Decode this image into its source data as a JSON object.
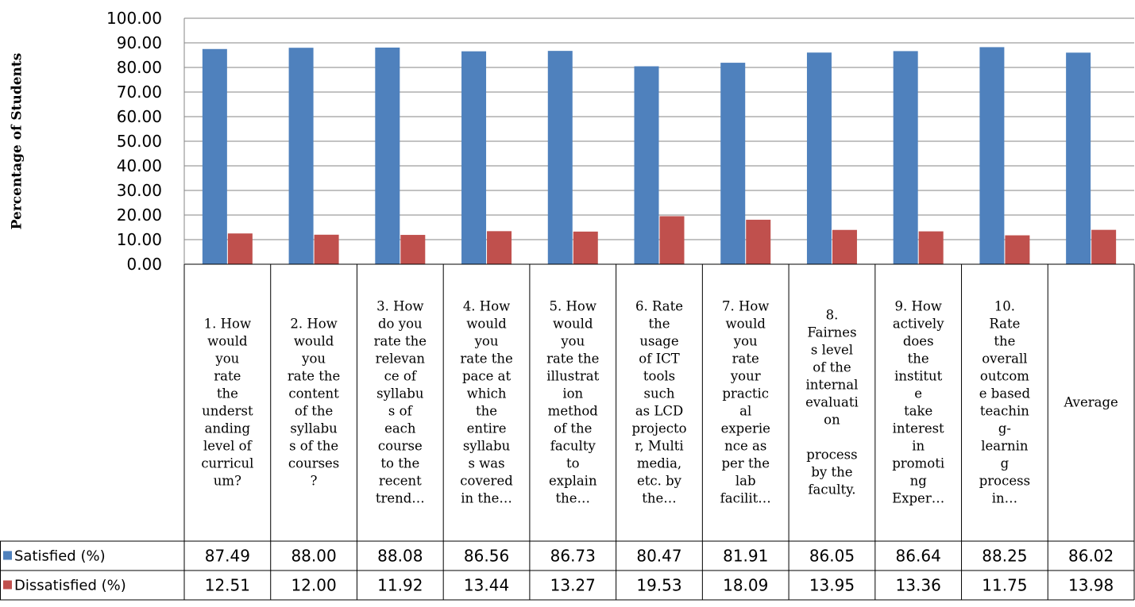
{
  "chart_data": {
    "type": "bar",
    "ylabel": "Percentage of Students",
    "ylim": [
      0,
      100
    ],
    "yticks": [
      "0.00",
      "10.00",
      "20.00",
      "30.00",
      "40.00",
      "50.00",
      "60.00",
      "70.00",
      "80.00",
      "90.00",
      "100.00"
    ],
    "grid": true,
    "legend": "data-table-left",
    "categories": [
      [
        "1. How",
        "would",
        "you",
        "rate",
        "the",
        "underst",
        "anding",
        "level of",
        "curricul",
        "um?"
      ],
      [
        "2. How",
        "would",
        "you",
        "rate the",
        "content",
        "of the",
        "syllabu",
        "s of the",
        "courses",
        "?"
      ],
      [
        "3. How",
        "do you",
        "rate the",
        "relevan",
        "ce of",
        "syllabu",
        "s of",
        "each",
        "course",
        "to the",
        "recent",
        "trend…"
      ],
      [
        "4. How",
        "would",
        "you",
        "rate the",
        "pace at",
        "which",
        "the",
        "entire",
        "syllabu",
        "s was",
        "covered",
        "in the…"
      ],
      [
        "5. How",
        "would",
        "you",
        "rate the",
        "illustrat",
        "ion",
        "method",
        "of the",
        "faculty",
        "to",
        "explain",
        "the…"
      ],
      [
        "6. Rate",
        "the",
        "usage",
        "of ICT",
        "tools",
        "such",
        "as LCD",
        "projecto",
        "r, Multi",
        "media,",
        "etc. by",
        "the…"
      ],
      [
        "7. How",
        "would",
        "you",
        "rate",
        "your",
        "practic",
        "al",
        "experie",
        "nce as",
        "per the",
        "lab",
        "facilit…"
      ],
      [
        "8.",
        "Fairnes",
        "s level",
        "of the",
        "internal",
        "evaluati",
        "on",
        "",
        "process",
        "by the",
        "faculty."
      ],
      [
        "9. How",
        "actively",
        "does",
        "the",
        "institut",
        "e",
        "take",
        "interest",
        "in",
        "promoti",
        "ng",
        "Exper…"
      ],
      [
        "10.",
        "Rate",
        "the",
        "overall",
        "outcom",
        "e based",
        "teachin",
        "g-",
        "learnin",
        "g",
        "process",
        "in…"
      ],
      [
        "Average"
      ]
    ],
    "series": [
      {
        "name": "Satisfied (%)",
        "color": "#4F81BD",
        "values": [
          87.49,
          88.0,
          88.08,
          86.56,
          86.73,
          80.47,
          81.91,
          86.05,
          86.64,
          88.25,
          86.02
        ],
        "labels": [
          "87.49",
          "88.00",
          "88.08",
          "86.56",
          "86.73",
          "80.47",
          "81.91",
          "86.05",
          "86.64",
          "88.25",
          "86.02"
        ]
      },
      {
        "name": "Dissatisfied (%)",
        "color": "#C0504D",
        "values": [
          12.51,
          12.0,
          11.92,
          13.44,
          13.27,
          19.53,
          18.09,
          13.95,
          13.36,
          11.75,
          13.98
        ],
        "labels": [
          "12.51",
          "12.00",
          "11.92",
          "13.44",
          "13.27",
          "19.53",
          "18.09",
          "13.95",
          "13.36",
          "11.75",
          "13.98"
        ]
      }
    ]
  }
}
